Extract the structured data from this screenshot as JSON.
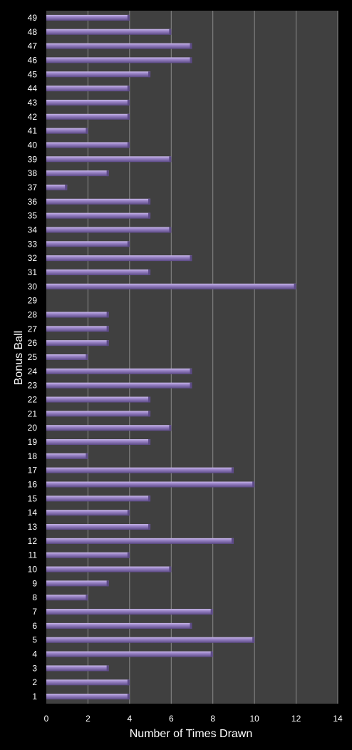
{
  "chart_data": {
    "type": "bar",
    "orientation": "horizontal",
    "xlabel": "Number of Times Drawn",
    "ylabel": "Bonus Ball",
    "xlim": [
      0,
      14
    ],
    "xticks": [
      0,
      2,
      4,
      6,
      8,
      10,
      12,
      14
    ],
    "grid": true,
    "categories": [
      "1",
      "2",
      "3",
      "4",
      "5",
      "6",
      "7",
      "8",
      "9",
      "10",
      "11",
      "12",
      "13",
      "14",
      "15",
      "16",
      "17",
      "18",
      "19",
      "20",
      "21",
      "22",
      "23",
      "24",
      "25",
      "26",
      "27",
      "28",
      "29",
      "30",
      "31",
      "32",
      "33",
      "34",
      "35",
      "36",
      "37",
      "38",
      "39",
      "40",
      "41",
      "42",
      "43",
      "44",
      "45",
      "46",
      "47",
      "48",
      "49"
    ],
    "values": [
      4,
      4,
      3,
      8,
      10,
      7,
      8,
      2,
      3,
      6,
      4,
      9,
      5,
      4,
      5,
      10,
      9,
      2,
      5,
      6,
      5,
      5,
      7,
      7,
      2,
      3,
      3,
      3,
      0,
      12,
      5,
      7,
      4,
      6,
      5,
      5,
      1,
      3,
      6,
      4,
      2,
      4,
      4,
      4,
      5,
      7,
      7,
      6,
      4
    ],
    "colors": {
      "background": "#000000",
      "plot_area": "#404040",
      "gridline": "#8c8c8c",
      "bar": "#9b85c8",
      "bar_highlight": "#c9b8ea",
      "bar_shadow": "#5c4a86",
      "text": "#ffffff"
    }
  }
}
